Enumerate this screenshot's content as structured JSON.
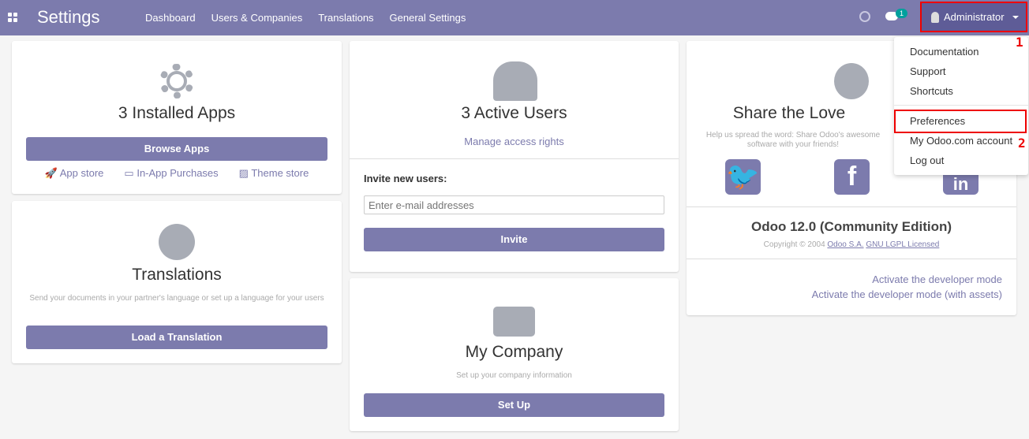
{
  "nav": {
    "title": "Settings",
    "menu": [
      "Dashboard",
      "Users & Companies",
      "Translations",
      "General Settings"
    ],
    "chat_count": "1",
    "user": "Administrator"
  },
  "dropdown": {
    "items": [
      "Documentation",
      "Support",
      "Shortcuts",
      "Preferences",
      "My Odoo.com account",
      "Log out"
    ]
  },
  "annotations": [
    "1",
    "2"
  ],
  "apps_card": {
    "title": "3 Installed Apps",
    "button": "Browse Apps",
    "links": [
      "App store",
      "In-App Purchases",
      "Theme store"
    ]
  },
  "translations_card": {
    "title": "Translations",
    "desc": "Send your documents in your partner's language or set up a language for your users",
    "button": "Load a Translation"
  },
  "users_card": {
    "title": "3 Active Users",
    "link": "Manage access rights",
    "invite_label": "Invite new users:",
    "placeholder": "Enter e-mail addresses",
    "button": "Invite"
  },
  "company_card": {
    "title": "My Company",
    "desc": "Set up your company information",
    "button": "Set Up"
  },
  "share_card": {
    "title": "Share the Love",
    "desc": "Help us spread the word: Share Odoo's awesome software with your friends!",
    "version": "Odoo 12.0 (Community Edition)",
    "copyright": "Copyright © 2004",
    "company_link": "Odoo S.A.",
    "license_link": "GNU LGPL Licensed",
    "dev_mode": "Activate the developer mode",
    "dev_mode_assets": "Activate the developer mode (with assets)"
  },
  "colors": {
    "brand": "#7c7bad",
    "annotation": "#e00000"
  }
}
